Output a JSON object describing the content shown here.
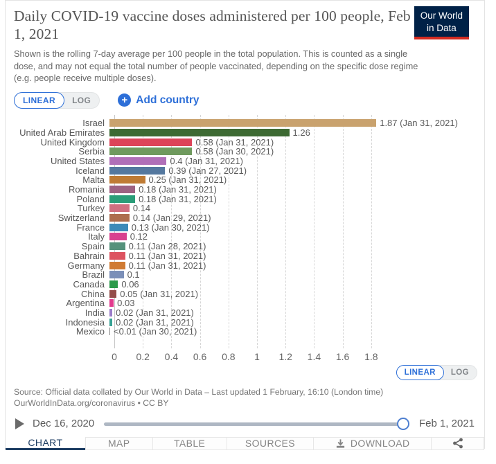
{
  "header": {
    "title": "Daily COVID-19 vaccine doses administered per 100 people, Feb 1, 2021",
    "subtitle": "Shown is the rolling 7-day average per 100 people in the total population. This is counted as a single dose, and may not equal the total number of people vaccinated, depending on the specific dose regime (e.g. people receive multiple doses).",
    "logo": {
      "line1": "Our World",
      "line2": "in Data",
      "bg_color": "#002147",
      "stripe_color": "#d42b21"
    }
  },
  "controls": {
    "linear_label": "LINEAR",
    "log_label": "LOG",
    "add_country_label": "Add country",
    "accent_color": "#2d6fd8"
  },
  "chart_data": {
    "type": "bar",
    "orientation": "horizontal",
    "title": "Daily COVID-19 vaccine doses administered per 100 people, Feb 1, 2021",
    "categories": [
      "Israel",
      "United Arab Emirates",
      "United Kingdom",
      "Serbia",
      "United States",
      "Iceland",
      "Malta",
      "Romania",
      "Poland",
      "Turkey",
      "Switzerland",
      "France",
      "Italy",
      "Spain",
      "Bahrain",
      "Germany",
      "Brazil",
      "Canada",
      "China",
      "Argentina",
      "India",
      "Indonesia",
      "Mexico"
    ],
    "values": [
      1.87,
      1.26,
      0.58,
      0.58,
      0.4,
      0.39,
      0.25,
      0.18,
      0.18,
      0.14,
      0.14,
      0.13,
      0.12,
      0.11,
      0.11,
      0.11,
      0.1,
      0.06,
      0.05,
      0.03,
      0.02,
      0.02,
      0.004
    ],
    "value_labels": [
      "1.87 (Jan 31, 2021)",
      "1.26",
      "0.58 (Jan 31, 2021)",
      "0.58 (Jan 30, 2021)",
      "0.4 (Jan 31, 2021)",
      "0.39 (Jan 27, 2021)",
      "0.25 (Jan 31, 2021)",
      "0.18 (Jan 31, 2021)",
      "0.18 (Jan 31, 2021)",
      "0.14",
      "0.14 (Jan 29, 2021)",
      "0.13 (Jan 30, 2021)",
      "0.12",
      "0.11 (Jan 28, 2021)",
      "0.11 (Jan 31, 2021)",
      "0.11 (Jan 31, 2021)",
      "0.1",
      "0.06",
      "0.05 (Jan 31, 2021)",
      "0.03",
      "0.02 (Jan 31, 2021)",
      "0.02 (Jan 31, 2021)",
      "<0.01 (Jan 30, 2021)"
    ],
    "colors": [
      "#c9a26e",
      "#3d6a33",
      "#dd4459",
      "#6f9a5e",
      "#b06fb8",
      "#54789f",
      "#bf7b34",
      "#9d6282",
      "#2a9d78",
      "#d06f80",
      "#ad6d4e",
      "#3d8ab8",
      "#d8418f",
      "#55917b",
      "#dd5360",
      "#d07b33",
      "#7b8fb8",
      "#2c9a4b",
      "#944d4a",
      "#e23a8e",
      "#9b7bc9",
      "#35a193",
      "#888888"
    ],
    "xticks": [
      0,
      0.2,
      0.4,
      0.6,
      0.8,
      1,
      1.2,
      1.4,
      1.6,
      1.8
    ],
    "xtick_labels": [
      "0",
      "0.2",
      "0.4",
      "0.6",
      "0.8",
      "1",
      "1.2",
      "1.4",
      "1.6",
      "1.8"
    ],
    "xlim": [
      0,
      1.9
    ],
    "grid": "dashed-vertical",
    "legend_position": "none"
  },
  "footer": {
    "source_line1": "Source: Official data collated by Our World in Data – Last updated 1 February, 16:10 (London time)",
    "source_line2": "OurWorldInData.org/coronavirus • CC BY"
  },
  "timeline": {
    "start_date": "Dec 16, 2020",
    "end_date": "Feb 1, 2021",
    "play_icon": "play-icon",
    "handle": "slider-handle"
  },
  "tabs": [
    {
      "label": "CHART",
      "active": true,
      "icon": ""
    },
    {
      "label": "MAP",
      "active": false,
      "icon": ""
    },
    {
      "label": "TABLE",
      "active": false,
      "icon": ""
    },
    {
      "label": "SOURCES",
      "active": false,
      "icon": ""
    },
    {
      "label": "DOWNLOAD",
      "active": false,
      "icon": "download-icon"
    },
    {
      "label": "",
      "active": false,
      "icon": "share-icon"
    }
  ],
  "icons": {
    "plus": "plus-icon",
    "play": "play-icon",
    "download": "download-icon",
    "share": "share-icon"
  }
}
